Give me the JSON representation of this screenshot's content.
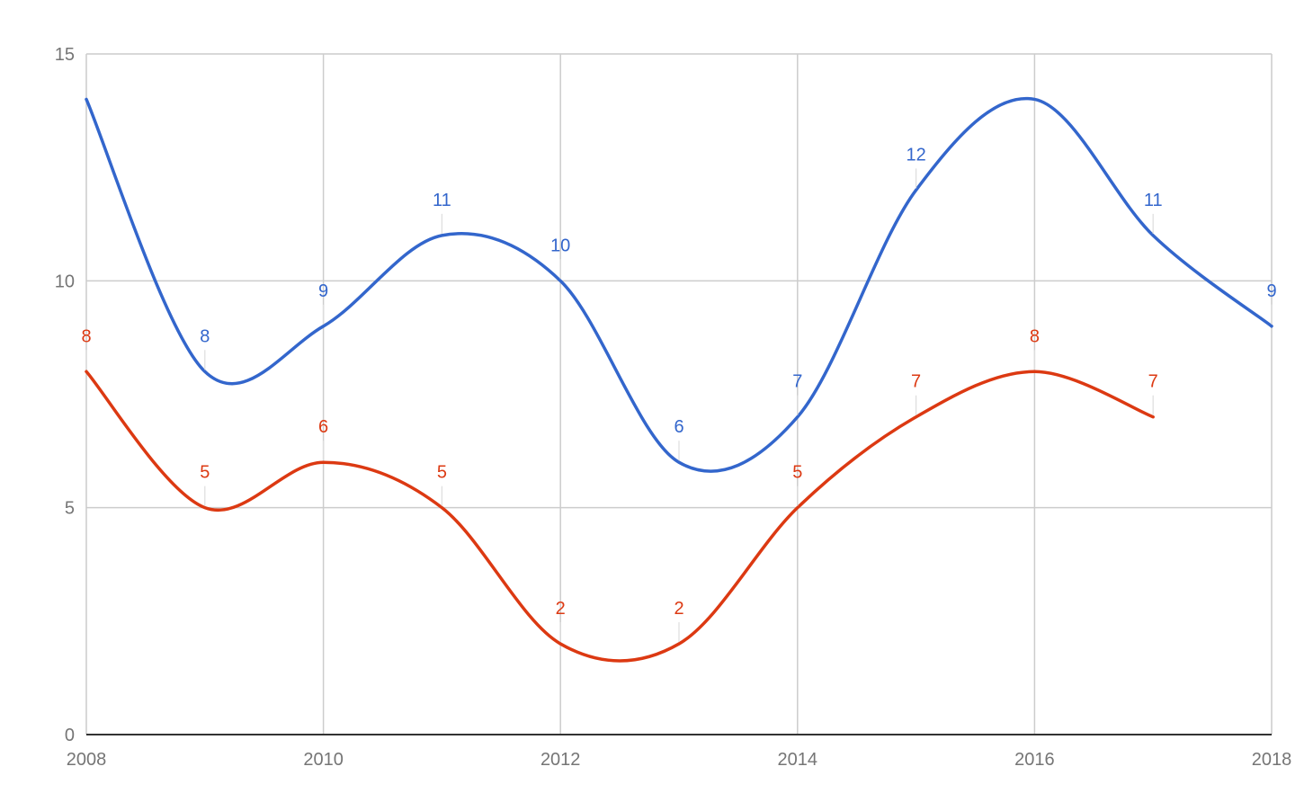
{
  "chart_data": {
    "type": "line",
    "smooth": true,
    "title": "",
    "xlabel": "",
    "ylabel": "",
    "xlim": [
      2008,
      2018
    ],
    "ylim": [
      0,
      15
    ],
    "x_ticks": [
      2008,
      2010,
      2012,
      2014,
      2016,
      2018
    ],
    "y_ticks": [
      0,
      5,
      10,
      15
    ],
    "grid": true,
    "legend": "none",
    "data_labels": true,
    "series": [
      {
        "color": "#3366cc",
        "x": [
          2008,
          2009,
          2010,
          2011,
          2012,
          2013,
          2014,
          2015,
          2016,
          2017,
          2018
        ],
        "values": [
          14,
          8,
          9,
          11,
          10,
          6,
          7,
          12,
          14,
          11,
          9
        ],
        "labels": [
          null,
          "8",
          "9",
          "11",
          "10",
          "6",
          "7",
          "12",
          null,
          "11",
          "9"
        ]
      },
      {
        "color": "#dc3912",
        "x": [
          2008,
          2009,
          2010,
          2011,
          2012,
          2013,
          2014,
          2015,
          2016,
          2017
        ],
        "values": [
          8,
          5,
          6,
          5,
          2,
          2,
          5,
          7,
          8,
          7
        ],
        "labels": [
          "8",
          "5",
          "6",
          "5",
          "2",
          "2",
          "5",
          "7",
          "8",
          "7"
        ]
      }
    ]
  }
}
